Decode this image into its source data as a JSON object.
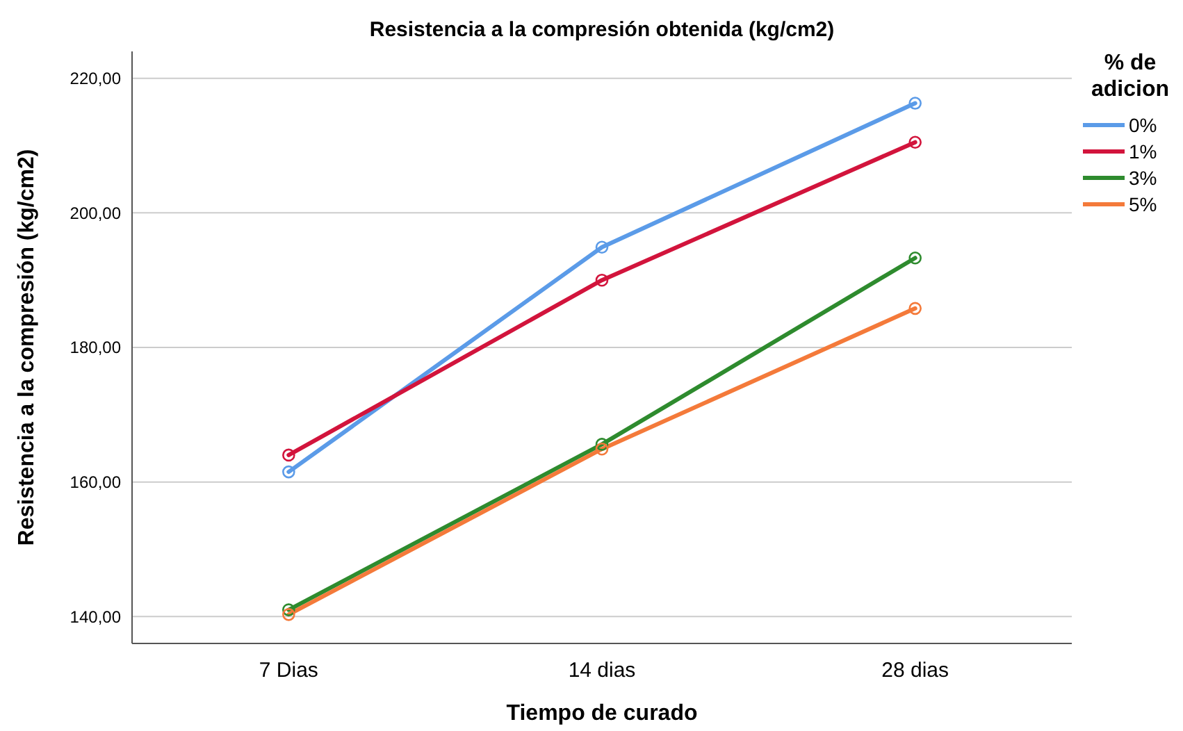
{
  "chart_data": {
    "type": "line",
    "title": "Resistencia a la compresión obtenida (kg/cm2)",
    "xlabel": "Tiempo de curado",
    "ylabel": "Resistencia a la compresión (kg/cm2)",
    "legend_title": "% de adicion",
    "categories": [
      "7 Dias",
      "14 dias",
      "28 dias"
    ],
    "series": [
      {
        "name": "0%",
        "color": "#5b9be8",
        "values": [
          161.5,
          194.9,
          216.3
        ]
      },
      {
        "name": "1%",
        "color": "#d2143c",
        "values": [
          164.0,
          190.0,
          210.5
        ]
      },
      {
        "name": "3%",
        "color": "#2e8b2e",
        "values": [
          141.0,
          165.6,
          193.3
        ]
      },
      {
        "name": "5%",
        "color": "#f47a3a",
        "values": [
          140.3,
          164.9,
          185.8
        ]
      }
    ],
    "ylim": [
      136,
      224
    ],
    "yticks": [
      {
        "value": 140,
        "label": "140,00"
      },
      {
        "value": 160,
        "label": "160,00"
      },
      {
        "value": 180,
        "label": "180,00"
      },
      {
        "value": 200,
        "label": "200,00"
      },
      {
        "value": 220,
        "label": "220,00"
      }
    ],
    "grid": "y",
    "legend": "right",
    "marker": "circle",
    "line_style": "solid"
  }
}
